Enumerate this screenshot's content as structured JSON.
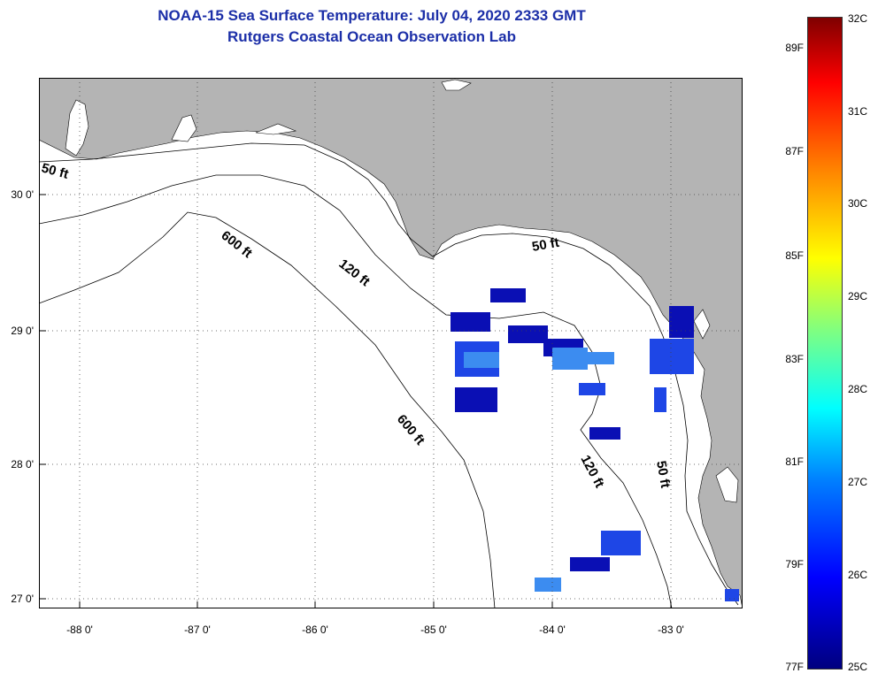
{
  "title": {
    "line1": "NOAA-15 Sea Surface Temperature:  July 04, 2020 2333 GMT",
    "line2": "Rutgers Coastal Ocean Observation Lab"
  },
  "axes": {
    "lat_labels": [
      "30 0'",
      "29 0'",
      "28 0'",
      "27 0'"
    ],
    "lon_labels": [
      "-88 0'",
      "-87 0'",
      "-86 0'",
      "-85 0'",
      "-84 0'",
      "-83 0'"
    ]
  },
  "contours": {
    "c50_west": "50 ft",
    "c600_north": "600 ft",
    "c120_north": "120 ft",
    "c50_east": "50 ft",
    "c600_south": "600 ft",
    "c120_south": "120 ft",
    "c50_south": "50 ft"
  },
  "colorbar": {
    "fahrenheit": [
      "89F",
      "87F",
      "85F",
      "83F",
      "81F",
      "79F",
      "77F"
    ],
    "celsius": [
      "32C",
      "31C",
      "30C",
      "29C",
      "28C",
      "27C",
      "26C",
      "25C"
    ]
  },
  "colors": {
    "land": "#b4b4b4",
    "title": "#1c2fa8",
    "sst_dark": "#0a0fb4",
    "sst_mid": "#1e46e6",
    "sst_light": "#3c8cf0"
  }
}
